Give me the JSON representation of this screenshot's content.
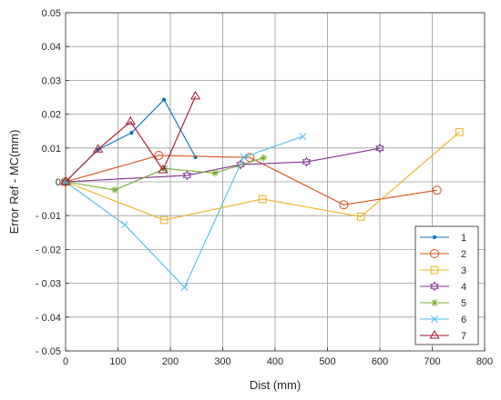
{
  "chart_data": {
    "type": "line",
    "xlabel": "Dist (mm)",
    "ylabel": "Error Ref - MC(mm)",
    "xlim": [
      0,
      800
    ],
    "ylim": [
      -0.05,
      0.05
    ],
    "xticks": [
      0,
      100,
      200,
      300,
      400,
      500,
      600,
      700,
      800
    ],
    "yticks": [
      -0.05,
      -0.04,
      -0.03,
      -0.02,
      -0.01,
      0,
      0.01,
      0.02,
      0.03,
      0.04,
      0.05
    ],
    "xtick_labels": [
      "0",
      "100",
      "200",
      "300",
      "400",
      "500",
      "600",
      "700",
      "800"
    ],
    "ytick_labels": [
      "- 0.05",
      "- 0.04",
      "- 0.03",
      "- 0.02",
      "- 0.01",
      "0",
      "0.01",
      "0.02",
      "0.03",
      "0.04",
      "0.05"
    ],
    "grid": true,
    "legend_position": "bottom-right",
    "series": [
      {
        "name": "1",
        "color": "#0072BD",
        "marker": "dot",
        "points": [
          [
            0,
            0
          ],
          [
            62,
            0.0095
          ],
          [
            126,
            0.0145
          ],
          [
            188,
            0.0243
          ],
          [
            248,
            0.0073
          ]
        ]
      },
      {
        "name": "2",
        "color": "#D95319",
        "marker": "circle",
        "points": [
          [
            0,
            0
          ],
          [
            178,
            0.0078
          ],
          [
            352,
            0.0072
          ],
          [
            531,
            -0.0068
          ],
          [
            709,
            -0.0025
          ]
        ]
      },
      {
        "name": "3",
        "color": "#EDB120",
        "marker": "square",
        "points": [
          [
            0,
            0
          ],
          [
            188,
            -0.0113
          ],
          [
            376,
            -0.0051
          ],
          [
            564,
            -0.0103
          ],
          [
            752,
            0.0147
          ]
        ]
      },
      {
        "name": "4",
        "color": "#7E2F8E",
        "marker": "hexagram",
        "points": [
          [
            0,
            0
          ],
          [
            232,
            0.0019
          ],
          [
            334,
            0.0051
          ],
          [
            460,
            0.0059
          ],
          [
            600,
            0.0099
          ]
        ]
      },
      {
        "name": "5",
        "color": "#77AC30",
        "marker": "asterisk",
        "points": [
          [
            0,
            0
          ],
          [
            94,
            -0.0024
          ],
          [
            190,
            0.0039
          ],
          [
            285,
            0.0026
          ],
          [
            378,
            0.0071
          ]
        ]
      },
      {
        "name": "6",
        "color": "#4DBEEE",
        "marker": "x",
        "points": [
          [
            0,
            0
          ],
          [
            113,
            -0.0127
          ],
          [
            227,
            -0.0312
          ],
          [
            340,
            0.0073
          ],
          [
            453,
            0.0134
          ]
        ]
      },
      {
        "name": "7",
        "color": "#A2142F",
        "marker": "triangle",
        "points": [
          [
            0,
            0
          ],
          [
            62,
            0.0096
          ],
          [
            124,
            0.0178
          ],
          [
            186,
            0.0035
          ],
          [
            248,
            0.0253
          ]
        ]
      }
    ]
  }
}
